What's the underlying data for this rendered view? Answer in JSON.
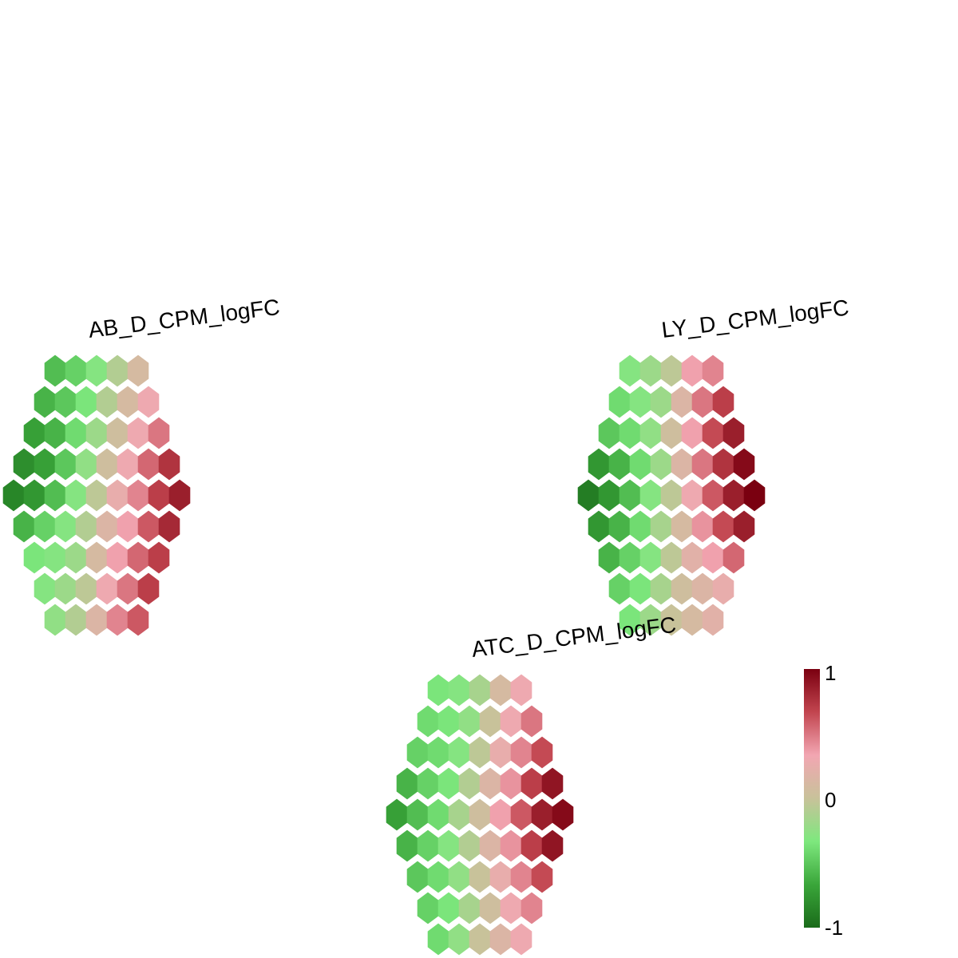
{
  "chart_data": {
    "type": "heatmap",
    "hex_layout": {
      "row_counts": [
        5,
        6,
        7,
        8,
        9,
        8,
        7,
        6,
        5
      ],
      "description": "hexagonal self-organizing map, rows top to bottom"
    },
    "maps": [
      {
        "title": "AB_D_CPM_logFC",
        "rows": [
          [
            -0.55,
            -0.45,
            -0.3,
            -0.1,
            0.1
          ],
          [
            -0.6,
            -0.5,
            -0.35,
            -0.1,
            0.1,
            0.3
          ],
          [
            -0.7,
            -0.6,
            -0.4,
            -0.2,
            0.05,
            0.3,
            0.5
          ],
          [
            -0.8,
            -0.7,
            -0.5,
            -0.25,
            0.05,
            0.3,
            0.55,
            0.75
          ],
          [
            -0.85,
            -0.75,
            -0.55,
            -0.3,
            -0.05,
            0.25,
            0.45,
            0.7,
            0.85
          ],
          [
            -0.6,
            -0.45,
            -0.3,
            -0.1,
            0.15,
            0.35,
            0.6,
            0.8
          ],
          [
            -0.35,
            -0.3,
            -0.2,
            0.1,
            0.35,
            0.55,
            0.7
          ],
          [
            -0.3,
            -0.2,
            -0.05,
            0.3,
            0.5,
            0.7
          ],
          [
            -0.25,
            -0.1,
            0.15,
            0.45,
            0.6
          ]
        ]
      },
      {
        "title": "LY_D_CPM_logFC",
        "rows": [
          [
            -0.3,
            -0.2,
            -0.05,
            0.35,
            0.45
          ],
          [
            -0.4,
            -0.3,
            -0.2,
            0.15,
            0.5,
            0.7
          ],
          [
            -0.5,
            -0.4,
            -0.25,
            0.05,
            0.35,
            0.65,
            0.85
          ],
          [
            -0.75,
            -0.6,
            -0.4,
            -0.2,
            0.15,
            0.5,
            0.75,
            0.95
          ],
          [
            -0.9,
            -0.75,
            -0.55,
            -0.3,
            -0.05,
            0.3,
            0.6,
            0.85,
            1.0
          ],
          [
            -0.75,
            -0.6,
            -0.4,
            -0.15,
            0.1,
            0.4,
            0.65,
            0.85
          ],
          [
            -0.6,
            -0.45,
            -0.3,
            -0.05,
            0.2,
            0.35,
            0.55
          ],
          [
            -0.45,
            -0.35,
            -0.15,
            0.05,
            0.15,
            0.25
          ],
          [
            -0.35,
            -0.2,
            0.0,
            0.1,
            0.2
          ]
        ]
      },
      {
        "title": "ATC_D_CPM_logFC",
        "rows": [
          [
            -0.35,
            -0.3,
            -0.15,
            0.1,
            0.3
          ],
          [
            -0.4,
            -0.35,
            -0.25,
            0.0,
            0.3,
            0.5
          ],
          [
            -0.45,
            -0.4,
            -0.3,
            -0.05,
            0.25,
            0.45,
            0.65
          ],
          [
            -0.6,
            -0.45,
            -0.35,
            -0.1,
            0.15,
            0.4,
            0.7,
            0.9
          ],
          [
            -0.7,
            -0.55,
            -0.4,
            -0.15,
            0.05,
            0.35,
            0.6,
            0.85,
            0.95
          ],
          [
            -0.6,
            -0.45,
            -0.3,
            -0.1,
            0.15,
            0.4,
            0.7,
            0.9
          ],
          [
            -0.5,
            -0.4,
            -0.25,
            0.0,
            0.25,
            0.45,
            0.65
          ],
          [
            -0.45,
            -0.35,
            -0.15,
            0.05,
            0.3,
            0.45
          ],
          [
            -0.4,
            -0.25,
            0.0,
            0.15,
            0.3
          ]
        ]
      }
    ],
    "legend": {
      "min": -1,
      "mid": 0,
      "max": 1,
      "tick_labels": [
        "1",
        "0",
        "-1"
      ],
      "colors": [
        "#1a6b1a",
        "#3aa63a",
        "#7ee87e",
        "#c8c29a",
        "#f2a6b2",
        "#c2454f",
        "#7a0010"
      ]
    }
  }
}
